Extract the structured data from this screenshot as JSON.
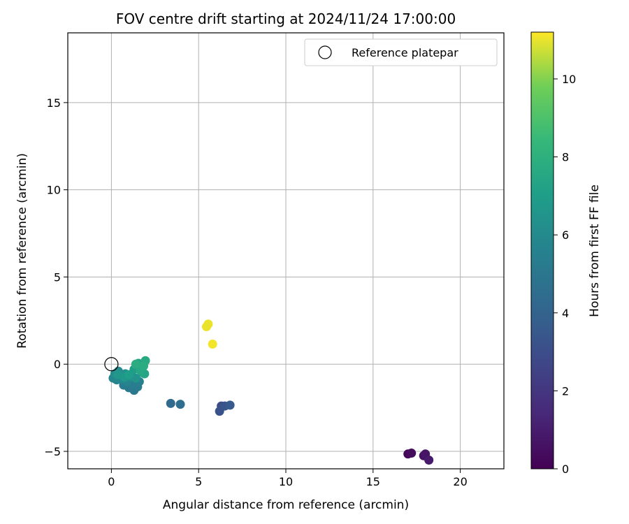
{
  "chart_data": {
    "type": "scatter",
    "title": "FOV centre drift starting at 2024/11/24 17:00:00",
    "xlabel": "Angular distance from reference (arcmin)",
    "ylabel": "Rotation from reference (arcmin)",
    "xlim": [
      -2.5,
      22.5
    ],
    "ylim": [
      -6,
      19
    ],
    "xticks": [
      0,
      5,
      10,
      15,
      20
    ],
    "yticks": [
      -5,
      0,
      5,
      10,
      15
    ],
    "grid": true,
    "legend": {
      "placement": "top-right",
      "entries": [
        "Reference platepar"
      ]
    },
    "reference_point": {
      "x": 0,
      "y": 0
    },
    "colorbar": {
      "label": "Hours from first FF file",
      "range": [
        0,
        11.2
      ],
      "ticks": [
        0,
        2,
        4,
        6,
        8,
        10
      ],
      "colormap": "viridis"
    },
    "series": [
      {
        "points": [
          {
            "x": 17.0,
            "y": -5.15,
            "c": 0.2
          },
          {
            "x": 17.2,
            "y": -5.1,
            "c": 0.4
          },
          {
            "x": 17.9,
            "y": -5.25,
            "c": 0.6
          },
          {
            "x": 18.0,
            "y": -5.15,
            "c": 0.7
          },
          {
            "x": 18.2,
            "y": -5.5,
            "c": 0.9
          },
          {
            "x": 6.3,
            "y": -2.4,
            "c": 3.0
          },
          {
            "x": 6.2,
            "y": -2.7,
            "c": 3.2
          },
          {
            "x": 6.5,
            "y": -2.4,
            "c": 3.4
          },
          {
            "x": 6.8,
            "y": -2.35,
            "c": 3.6
          },
          {
            "x": 3.4,
            "y": -2.25,
            "c": 4.3
          },
          {
            "x": 3.95,
            "y": -2.3,
            "c": 4.5
          },
          {
            "x": 1.3,
            "y": -1.5,
            "c": 5.0
          },
          {
            "x": 1.0,
            "y": -1.35,
            "c": 5.1
          },
          {
            "x": 1.5,
            "y": -1.3,
            "c": 5.2
          },
          {
            "x": 0.7,
            "y": -1.2,
            "c": 5.3
          },
          {
            "x": 1.2,
            "y": -1.15,
            "c": 5.4
          },
          {
            "x": 1.6,
            "y": -1.0,
            "c": 5.5
          },
          {
            "x": 0.3,
            "y": -0.9,
            "c": 5.6
          },
          {
            "x": 0.9,
            "y": -1.0,
            "c": 5.7
          },
          {
            "x": 0.1,
            "y": -0.8,
            "c": 5.8
          },
          {
            "x": 0.5,
            "y": -0.85,
            "c": 5.9
          },
          {
            "x": 0.2,
            "y": -0.55,
            "c": 6.0
          },
          {
            "x": 0.4,
            "y": -0.4,
            "c": 6.1
          },
          {
            "x": 0.6,
            "y": -0.65,
            "c": 6.2
          },
          {
            "x": 0.8,
            "y": -0.55,
            "c": 6.3
          },
          {
            "x": 1.1,
            "y": -0.7,
            "c": 6.4
          },
          {
            "x": 1.4,
            "y": -0.8,
            "c": 6.5
          },
          {
            "x": 0.35,
            "y": -0.6,
            "c": 6.6
          },
          {
            "x": 0.75,
            "y": -0.75,
            "c": 6.7
          },
          {
            "x": 1.8,
            "y": -0.5,
            "c": 6.8
          },
          {
            "x": 1.3,
            "y": -0.3,
            "c": 6.9
          },
          {
            "x": 1.0,
            "y": -0.6,
            "c": 7.0
          },
          {
            "x": 1.45,
            "y": -0.15,
            "c": 7.1
          },
          {
            "x": 1.7,
            "y": -0.05,
            "c": 7.2
          },
          {
            "x": 1.55,
            "y": 0.05,
            "c": 7.3
          },
          {
            "x": 1.9,
            "y": -0.55,
            "c": 7.4
          },
          {
            "x": 1.65,
            "y": -0.35,
            "c": 7.5
          },
          {
            "x": 1.95,
            "y": 0.2,
            "c": 7.6
          },
          {
            "x": 1.85,
            "y": -0.1,
            "c": 7.7
          },
          {
            "x": 1.4,
            "y": 0.0,
            "c": 7.8
          },
          {
            "x": 5.45,
            "y": 2.15,
            "c": 11.0
          },
          {
            "x": 5.55,
            "y": 2.3,
            "c": 11.0
          },
          {
            "x": 5.8,
            "y": 1.15,
            "c": 11.1
          }
        ]
      }
    ]
  }
}
